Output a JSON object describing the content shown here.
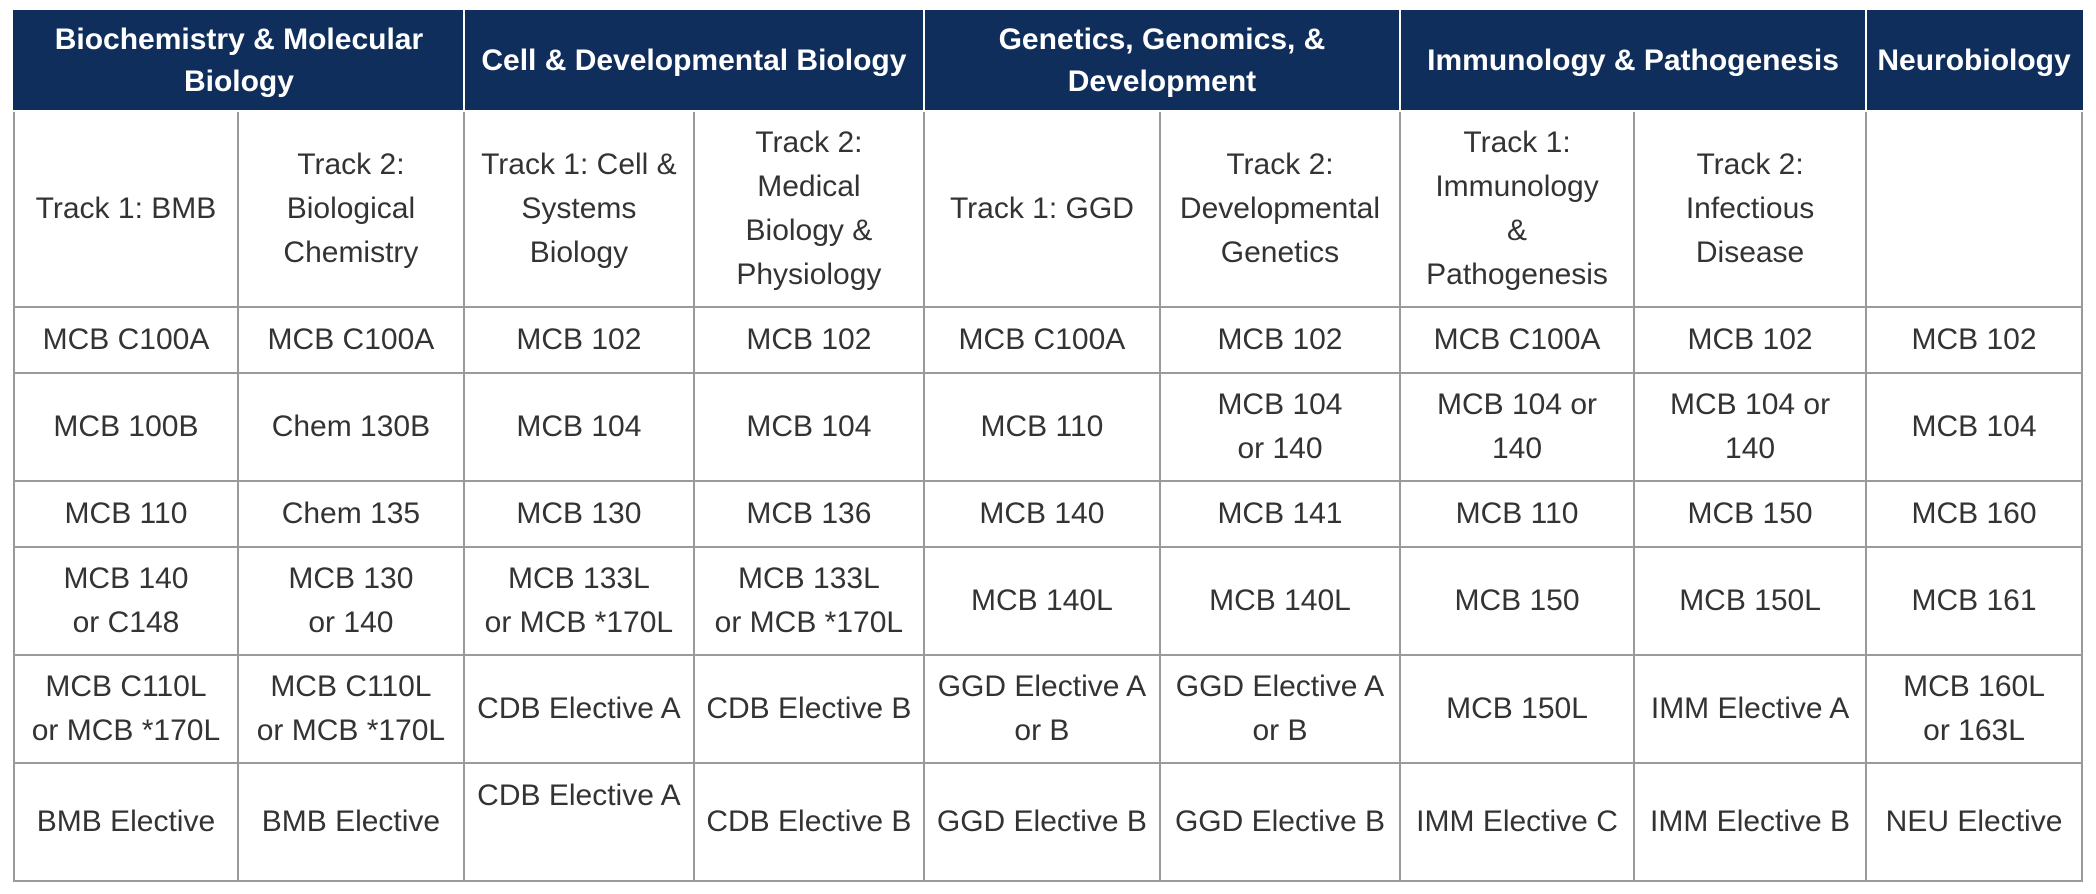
{
  "groups": [
    "Biochemistry & Molecular Biology",
    "Cell & Developmental Biology",
    "Genetics, Genomics, & Development",
    "Immunology & Pathogenesis",
    "Neurobiology"
  ],
  "tracks": [
    "Track 1: BMB",
    "Track 2:\nBiological\nChemistry",
    "Track 1: Cell &\nSystems\nBiology",
    "Track 2:\nMedical\nBiology &\nPhysiology",
    "Track 1: GGD",
    "Track 2:\nDevelopmental\nGenetics",
    "Track 1:\nImmunology\n&\nPathogenesis",
    "Track 2:\nInfectious\nDisease",
    ""
  ],
  "rows": [
    [
      "MCB C100A",
      "MCB C100A",
      "MCB 102",
      "MCB 102",
      "MCB C100A",
      "MCB 102",
      "MCB C100A",
      "MCB 102",
      "MCB 102"
    ],
    [
      "MCB 100B",
      "Chem 130B",
      "MCB 104",
      "MCB 104",
      "MCB 110",
      "MCB 104\nor 140",
      "MCB 104 or\n140",
      "MCB 104 or\n140",
      "MCB 104"
    ],
    [
      "MCB 110",
      "Chem 135",
      "MCB 130",
      "MCB 136",
      "MCB 140",
      "MCB 141",
      "MCB 110",
      "MCB 150",
      "MCB 160"
    ],
    [
      "MCB 140\nor C148",
      "MCB 130\nor 140",
      "MCB 133L\nor MCB *170L",
      "MCB 133L\nor MCB *170L",
      "MCB 140L",
      "MCB 140L",
      "MCB 150",
      "MCB 150L",
      "MCB 161"
    ],
    [
      "MCB C110L\nor MCB *170L",
      "MCB C110L\nor MCB *170L",
      "CDB Elective A",
      "CDB Elective B",
      "GGD Elective A\nor B",
      "GGD Elective A\nor B",
      "MCB 150L",
      "IMM Elective A",
      "MCB 160L\nor 163L"
    ],
    [
      "BMB Elective",
      "BMB Elective",
      "CDB Elective A",
      "CDB Elective B",
      "GGD Elective B",
      "GGD Elective B",
      "IMM Elective C",
      "IMM Elective B",
      "NEU Elective"
    ]
  ]
}
